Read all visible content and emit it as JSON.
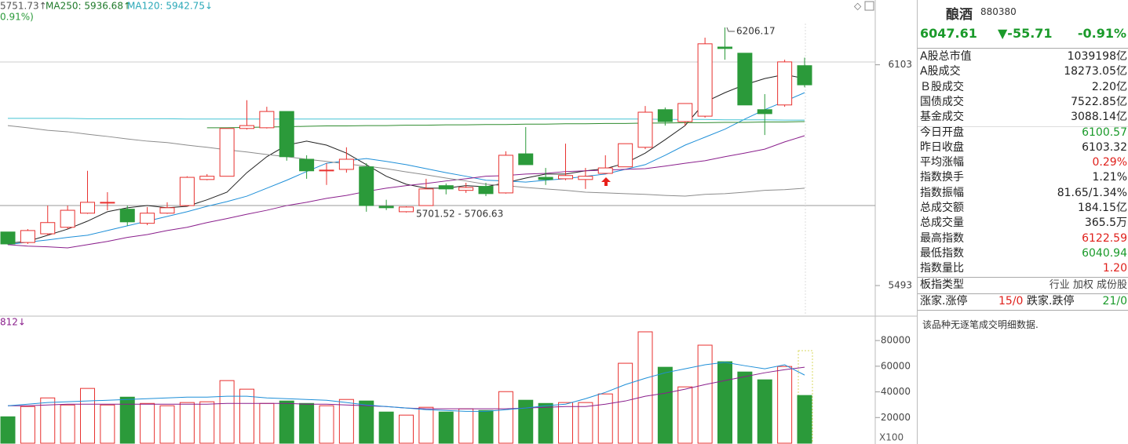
{
  "header": {
    "items": [
      {
        "text": "5751.73↑",
        "color": "#555555"
      },
      {
        "text": "MA250: 5936.68↑",
        "color": "#1f7a2a"
      },
      {
        "text": "MA120: 5942.75↓",
        "color": "#2aa8b8"
      }
    ],
    "sub": "0.91%)",
    "volume_label": "812↓",
    "volume_unit": "X100"
  },
  "chart_data": [
    {
      "type": "candlestick",
      "up_color": "#e8312f",
      "down_color": "#2b9a3a",
      "ohlc": [
        [
          5641,
          5641,
          5606,
          5608
        ],
        [
          5612,
          5649,
          5608,
          5645
        ],
        [
          5636,
          5714,
          5632,
          5667
        ],
        [
          5654,
          5714,
          5649,
          5701
        ],
        [
          5693,
          5810,
          5691,
          5723
        ],
        [
          5721,
          5751,
          5701,
          5723
        ],
        [
          5704,
          5714,
          5658,
          5669
        ],
        [
          5665,
          5710,
          5660,
          5693
        ],
        [
          5693,
          5723,
          5691,
          5708
        ],
        [
          5714,
          5795,
          5712,
          5792
        ],
        [
          5786,
          5801,
          5784,
          5795
        ],
        [
          5795,
          5927,
          5795,
          5927
        ],
        [
          5927,
          6005,
          5924,
          5935
        ],
        [
          5929,
          5987,
          5927,
          5974
        ],
        [
          5974,
          5974,
          5838,
          5849
        ],
        [
          5842,
          5853,
          5788,
          5810
        ],
        [
          5810,
          5831,
          5771,
          5812
        ],
        [
          5814,
          5875,
          5805,
          5842
        ],
        [
          5821,
          5831,
          5697,
          5714
        ],
        [
          5712,
          5730,
          5701.52,
          5708
        ],
        [
          5697,
          5712,
          5695,
          5710
        ],
        [
          5714,
          5788,
          5714,
          5760
        ],
        [
          5769,
          5775,
          5745,
          5760
        ],
        [
          5756,
          5777,
          5749,
          5764
        ],
        [
          5767,
          5777,
          5740,
          5747
        ],
        [
          5749,
          5864,
          5747,
          5853
        ],
        [
          5857,
          5931,
          5827,
          5827
        ],
        [
          5792,
          5818,
          5771,
          5786
        ],
        [
          5788,
          5885,
          5784,
          5797
        ],
        [
          5786,
          5818,
          5760,
          5795
        ],
        [
          5803,
          5853,
          5801,
          5818
        ],
        [
          5821,
          5885,
          5821,
          5885
        ],
        [
          5875,
          5989,
          5870,
          5972
        ],
        [
          5979,
          5985,
          5935,
          5946
        ],
        [
          5946,
          5996,
          5935,
          5996
        ],
        [
          5961,
          6178,
          5957,
          6161
        ],
        [
          6152,
          6206.17,
          6117,
          6148
        ],
        [
          6135,
          6135,
          5992,
          5992
        ],
        [
          5979,
          6022,
          5909,
          5968
        ],
        [
          5992,
          6117,
          5987,
          6111
        ],
        [
          6100.57,
          6122.59,
          6040.94,
          6047.61
        ]
      ],
      "ylim": [
        5415,
        6243
      ],
      "yticks": [
        5493,
        6103
      ],
      "series": [
        {
          "color": "#222222",
          "values": [
            5610,
            5615,
            5632,
            5649,
            5671,
            5697,
            5708,
            5714,
            5708,
            5712,
            5730,
            5751,
            5805,
            5849,
            5881,
            5892,
            5881,
            5859,
            5827,
            5795,
            5773,
            5762,
            5762,
            5769,
            5766,
            5777,
            5790,
            5801,
            5801,
            5810,
            5816,
            5831,
            5859,
            5896,
            5935,
            6000,
            6026,
            6048,
            6065,
            6076,
            6065
          ]
        },
        {
          "color": "#1e8fd8",
          "values": [
            5606,
            5613,
            5619,
            5626,
            5632,
            5645,
            5658,
            5671,
            5684,
            5697,
            5712,
            5725,
            5740,
            5762,
            5784,
            5808,
            5831,
            5838,
            5844,
            5836,
            5827,
            5816,
            5805,
            5795,
            5784,
            5782,
            5779,
            5784,
            5788,
            5795,
            5801,
            5814,
            5827,
            5853,
            5881,
            5903,
            5925,
            5953,
            5979,
            6002,
            6026
          ]
        },
        {
          "color": "#8a1f8c",
          "values": [
            5606,
            5602,
            5600,
            5597,
            5606,
            5615,
            5626,
            5634,
            5645,
            5654,
            5667,
            5678,
            5690,
            5701,
            5714,
            5723,
            5734,
            5742,
            5753,
            5762,
            5769,
            5775,
            5782,
            5788,
            5795,
            5797,
            5801,
            5803,
            5808,
            5810,
            5812,
            5814,
            5816,
            5823,
            5831,
            5838,
            5849,
            5859,
            5870,
            5890,
            5907
          ]
        },
        {
          "name": "MA250",
          "color": "#8c8c8c",
          "values": [
            5935,
            5929,
            5922,
            5918,
            5911,
            5905,
            5898,
            5892,
            5888,
            5881,
            5875,
            5868,
            5862,
            5855,
            5849,
            5842,
            5836,
            5829,
            5823,
            5816,
            5807,
            5799,
            5790,
            5782,
            5773,
            5769,
            5764,
            5760,
            5756,
            5751,
            5749,
            5747,
            5745,
            5742,
            5740,
            5745,
            5747,
            5751,
            5756,
            5758,
            5762
          ]
        },
        {
          "name": "MA120",
          "color": "#44c4d4",
          "values": [
            5955,
            5955,
            5955,
            5955,
            5954,
            5954,
            5954,
            5954,
            5954,
            5953,
            5953,
            5953,
            5953,
            5953,
            5953,
            5953,
            5953,
            5953,
            5953,
            5953,
            5953,
            5953,
            5953,
            5953,
            5953,
            5953,
            5953,
            5953,
            5953,
            5953,
            5953,
            5953,
            5953,
            5952,
            5952,
            5952,
            5951,
            5951,
            5951,
            5950,
            5950
          ]
        },
        {
          "color": "#2e8b2e",
          "values": [
            null,
            null,
            null,
            null,
            null,
            null,
            null,
            null,
            null,
            null,
            5929,
            5929,
            5930,
            5931,
            5932,
            5933,
            5934,
            5934,
            5935,
            5935,
            5936,
            5936,
            5937,
            5937,
            5938,
            5938,
            5939,
            5939,
            5940,
            5940,
            5941,
            5941,
            5942,
            5942,
            5943,
            5943,
            5944,
            5944,
            5945,
            5945,
            5946
          ]
        }
      ],
      "annotations": [
        "6206.17",
        "5701.52 - 5706.63"
      ]
    },
    {
      "type": "bar",
      "ylim": [
        0,
        97800
      ],
      "yticks": [
        20000,
        40000,
        60000,
        80000
      ],
      "values": [
        20600,
        28600,
        35300,
        29800,
        42700,
        29800,
        35900,
        31000,
        29200,
        31700,
        32300,
        48800,
        42100,
        31000,
        32900,
        31000,
        29200,
        34100,
        32900,
        24300,
        21900,
        28000,
        24300,
        26800,
        25500,
        40200,
        33500,
        31000,
        31700,
        31700,
        38400,
        62300,
        86800,
        59200,
        43900,
        76400,
        63500,
        55500,
        49400,
        59800,
        37200
      ],
      "series": [
        {
          "color": "#8a1f8c",
          "values": [
            29200,
            29200,
            29800,
            30400,
            30400,
            30400,
            30400,
            30400,
            30400,
            30400,
            30400,
            31000,
            31000,
            31000,
            31000,
            30400,
            30400,
            29800,
            29200,
            28600,
            27400,
            26800,
            26800,
            26800,
            26800,
            26800,
            27400,
            28000,
            28600,
            28600,
            30400,
            32900,
            36600,
            39000,
            42100,
            45700,
            48800,
            51900,
            54900,
            57300,
            59200
          ]
        },
        {
          "color": "#1e8fd8",
          "values": [
            29200,
            30400,
            31700,
            32300,
            32900,
            33500,
            34100,
            34700,
            35300,
            35900,
            35900,
            36600,
            36600,
            35300,
            34700,
            34100,
            33500,
            31700,
            29800,
            28600,
            27400,
            26100,
            25500,
            24800,
            24800,
            26100,
            27400,
            29200,
            30400,
            34700,
            39600,
            45700,
            50600,
            54900,
            58000,
            61100,
            63000,
            60400,
            58000,
            61100,
            53100
          ]
        }
      ]
    }
  ],
  "panel": {
    "name": "酿酒",
    "code": "880380",
    "price": "6047.61",
    "change": "▼-55.71",
    "pct": "-0.91%",
    "rows": [
      {
        "label": "A股总市值",
        "value": "1039198亿",
        "color": "#222"
      },
      {
        "label": "A股成交",
        "value": "18273.05亿",
        "color": "#222"
      },
      {
        "label": "Ｂ股成交",
        "value": "2.20亿",
        "color": "#222"
      },
      {
        "label": "国债成交",
        "value": "7522.85亿",
        "color": "#222"
      },
      {
        "label": "基金成交",
        "value": "3088.14亿",
        "color": "#222"
      },
      {
        "label": "今日开盘",
        "value": "6100.57",
        "color": "#1a9a2a"
      },
      {
        "label": "昨日收盘",
        "value": "6103.32",
        "color": "#222"
      },
      {
        "label": "平均涨幅",
        "value": "0.29%",
        "color": "#e0201b"
      },
      {
        "label": "指数换手",
        "value": "1.21%",
        "color": "#222"
      },
      {
        "label": "指数振幅",
        "value": "81.65/1.34%",
        "color": "#222"
      },
      {
        "label": "总成交额",
        "value": "184.15亿",
        "color": "#222"
      },
      {
        "label": "总成交量",
        "value": "365.5万",
        "color": "#222"
      },
      {
        "label": "最高指数",
        "value": "6122.59",
        "color": "#e0201b"
      },
      {
        "label": "最低指数",
        "value": "6040.94",
        "color": "#1a9a2a"
      },
      {
        "label": "指数量比",
        "value": "1.20",
        "color": "#e0201b"
      }
    ],
    "type_row": {
      "label": "板指类型",
      "value": "行业 加权 成份股"
    },
    "breadth": [
      {
        "label": "涨家.涨停",
        "value": "15/0",
        "color": "#e0201b"
      },
      {
        "label": "跌家.跌停",
        "value": "21/0",
        "color": "#1a9a2a"
      }
    ],
    "note": "该品种无逐笔成交明细数据."
  }
}
